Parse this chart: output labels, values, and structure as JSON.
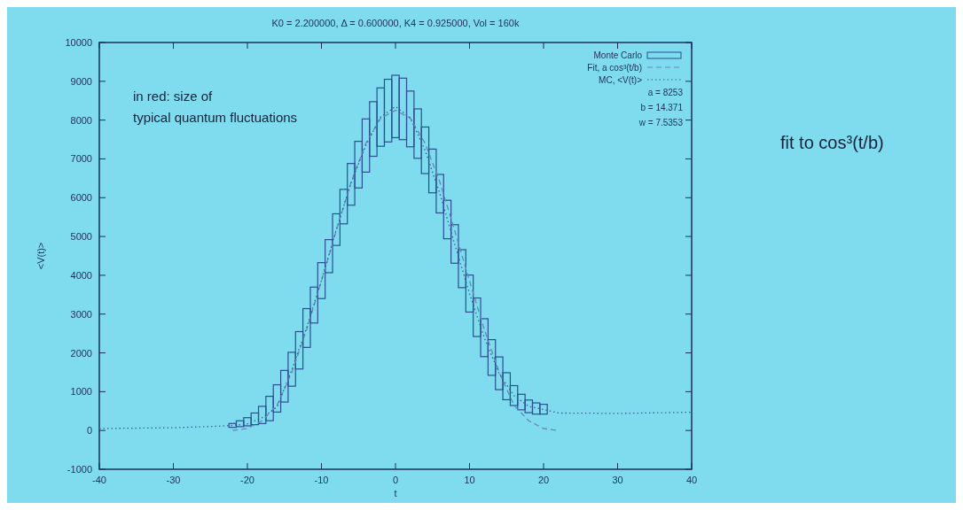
{
  "chart_data": {
    "type": "bar",
    "title": "K0 = 2.200000, Δ = 0.600000, K4 = 0.925000, Vol = 160k",
    "xlabel": "t",
    "ylabel": "<V(t)>",
    "xlim": [
      -40,
      40
    ],
    "xticks": [
      -40,
      -30,
      -20,
      -10,
      0,
      10,
      20,
      30,
      40
    ],
    "ylim": [
      -1000,
      10000
    ],
    "yticks": [
      -1000,
      0,
      1000,
      2000,
      3000,
      4000,
      5000,
      6000,
      7000,
      8000,
      9000,
      10000
    ],
    "grid": false,
    "legend": "top right",
    "annotations": [
      "a = 8253",
      "b = 14.371",
      "w = 7.5353",
      "in red: size of typical quantum fluctuations",
      "fit to cos³(t/b)"
    ],
    "series": [
      {
        "name": "Monte Carlo",
        "color": "#2b4f8f",
        "x": [
          -22,
          -21,
          -20,
          -19,
          -18,
          -17,
          -16,
          -15,
          -14,
          -13,
          -12,
          -11,
          -10,
          -9,
          -8,
          -7,
          -6,
          -5,
          -4,
          -3,
          -2,
          -1,
          0,
          1,
          2,
          3,
          4,
          5,
          6,
          7,
          8,
          9,
          10,
          11,
          12,
          13,
          14,
          15,
          16,
          17,
          18,
          19,
          20
        ],
        "base": [
          80,
          100,
          120,
          150,
          178,
          252,
          474,
          733,
          1141,
          1585,
          2141,
          2770,
          3400,
          4067,
          4770,
          5326,
          5807,
          6252,
          6659,
          7067,
          7326,
          7437,
          7548,
          7496,
          7311,
          7015,
          6622,
          6126,
          5607,
          4941,
          4311,
          3681,
          3052,
          2422,
          1904,
          1422,
          1052,
          793,
          644,
          533,
          459,
          422,
          422
        ],
        "values": [
          100,
          150,
          210,
          300,
          444,
          629,
          704,
          815,
          874,
          963,
          1000,
          926,
          926,
          852,
          815,
          889,
          1074,
          1200,
          1371,
          1407,
          1504,
          1615,
          1608,
          1585,
          1437,
          1274,
          1200,
          1126,
          993,
          992,
          993,
          978,
          955,
          993,
          977,
          919,
          844,
          696,
          512,
          400,
          326,
          289,
          252
        ]
      },
      {
        "name": "Fit, a cos³(t/b)",
        "type": "line",
        "color": "#6a86b8",
        "line_style": "dashed",
        "x": [
          -22,
          -20,
          -18,
          -16,
          -14,
          -12,
          -10,
          -8,
          -6,
          -4,
          -2,
          0,
          2,
          4,
          6,
          8,
          10,
          12,
          14,
          16,
          18,
          20,
          22
        ],
        "values": [
          0,
          50,
          250,
          650,
          1500,
          2600,
          3850,
          5150,
          6400,
          7400,
          8050,
          8250,
          8050,
          7400,
          6400,
          5150,
          3850,
          2600,
          1500,
          650,
          250,
          50,
          0
        ]
      },
      {
        "name": "MC, <V(t)>",
        "type": "line",
        "color": "#3d5f99",
        "line_style": "dotted",
        "x": [
          -40,
          -30,
          -24,
          -22,
          -20,
          -18,
          -16,
          -14,
          -12,
          -10,
          -8,
          -6,
          -4,
          -2,
          0,
          2,
          4,
          6,
          8,
          10,
          12,
          14,
          16,
          18,
          20,
          22,
          30,
          40
        ],
        "values": [
          50,
          70,
          110,
          130,
          170,
          330,
          600,
          1570,
          2650,
          3870,
          5170,
          6380,
          7350,
          8080,
          8350,
          8060,
          7220,
          6100,
          4800,
          3530,
          2390,
          1470,
          900,
          620,
          540,
          450,
          440,
          470
        ]
      }
    ]
  }
}
